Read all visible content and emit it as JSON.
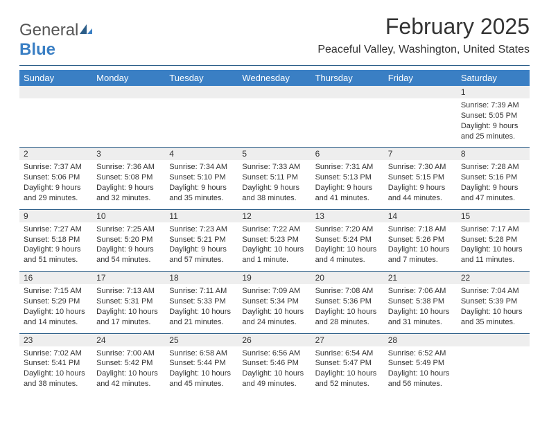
{
  "brand": {
    "word1": "General",
    "word2": "Blue"
  },
  "title": "February 2025",
  "location": "Peaceful Valley, Washington, United States",
  "colors": {
    "header_bg": "#3a7fc4",
    "header_text": "#ffffff",
    "divider": "#2b5d88",
    "band_bg": "#eeeeee",
    "text": "#333333",
    "page_bg": "#ffffff"
  },
  "day_headers": [
    "Sunday",
    "Monday",
    "Tuesday",
    "Wednesday",
    "Thursday",
    "Friday",
    "Saturday"
  ],
  "weeks": [
    [
      null,
      null,
      null,
      null,
      null,
      null,
      {
        "n": "1",
        "sr": "7:39 AM",
        "ss": "5:05 PM",
        "dl": "9 hours and 25 minutes."
      }
    ],
    [
      {
        "n": "2",
        "sr": "7:37 AM",
        "ss": "5:06 PM",
        "dl": "9 hours and 29 minutes."
      },
      {
        "n": "3",
        "sr": "7:36 AM",
        "ss": "5:08 PM",
        "dl": "9 hours and 32 minutes."
      },
      {
        "n": "4",
        "sr": "7:34 AM",
        "ss": "5:10 PM",
        "dl": "9 hours and 35 minutes."
      },
      {
        "n": "5",
        "sr": "7:33 AM",
        "ss": "5:11 PM",
        "dl": "9 hours and 38 minutes."
      },
      {
        "n": "6",
        "sr": "7:31 AM",
        "ss": "5:13 PM",
        "dl": "9 hours and 41 minutes."
      },
      {
        "n": "7",
        "sr": "7:30 AM",
        "ss": "5:15 PM",
        "dl": "9 hours and 44 minutes."
      },
      {
        "n": "8",
        "sr": "7:28 AM",
        "ss": "5:16 PM",
        "dl": "9 hours and 47 minutes."
      }
    ],
    [
      {
        "n": "9",
        "sr": "7:27 AM",
        "ss": "5:18 PM",
        "dl": "9 hours and 51 minutes."
      },
      {
        "n": "10",
        "sr": "7:25 AM",
        "ss": "5:20 PM",
        "dl": "9 hours and 54 minutes."
      },
      {
        "n": "11",
        "sr": "7:23 AM",
        "ss": "5:21 PM",
        "dl": "9 hours and 57 minutes."
      },
      {
        "n": "12",
        "sr": "7:22 AM",
        "ss": "5:23 PM",
        "dl": "10 hours and 1 minute."
      },
      {
        "n": "13",
        "sr": "7:20 AM",
        "ss": "5:24 PM",
        "dl": "10 hours and 4 minutes."
      },
      {
        "n": "14",
        "sr": "7:18 AM",
        "ss": "5:26 PM",
        "dl": "10 hours and 7 minutes."
      },
      {
        "n": "15",
        "sr": "7:17 AM",
        "ss": "5:28 PM",
        "dl": "10 hours and 11 minutes."
      }
    ],
    [
      {
        "n": "16",
        "sr": "7:15 AM",
        "ss": "5:29 PM",
        "dl": "10 hours and 14 minutes."
      },
      {
        "n": "17",
        "sr": "7:13 AM",
        "ss": "5:31 PM",
        "dl": "10 hours and 17 minutes."
      },
      {
        "n": "18",
        "sr": "7:11 AM",
        "ss": "5:33 PM",
        "dl": "10 hours and 21 minutes."
      },
      {
        "n": "19",
        "sr": "7:09 AM",
        "ss": "5:34 PM",
        "dl": "10 hours and 24 minutes."
      },
      {
        "n": "20",
        "sr": "7:08 AM",
        "ss": "5:36 PM",
        "dl": "10 hours and 28 minutes."
      },
      {
        "n": "21",
        "sr": "7:06 AM",
        "ss": "5:38 PM",
        "dl": "10 hours and 31 minutes."
      },
      {
        "n": "22",
        "sr": "7:04 AM",
        "ss": "5:39 PM",
        "dl": "10 hours and 35 minutes."
      }
    ],
    [
      {
        "n": "23",
        "sr": "7:02 AM",
        "ss": "5:41 PM",
        "dl": "10 hours and 38 minutes."
      },
      {
        "n": "24",
        "sr": "7:00 AM",
        "ss": "5:42 PM",
        "dl": "10 hours and 42 minutes."
      },
      {
        "n": "25",
        "sr": "6:58 AM",
        "ss": "5:44 PM",
        "dl": "10 hours and 45 minutes."
      },
      {
        "n": "26",
        "sr": "6:56 AM",
        "ss": "5:46 PM",
        "dl": "10 hours and 49 minutes."
      },
      {
        "n": "27",
        "sr": "6:54 AM",
        "ss": "5:47 PM",
        "dl": "10 hours and 52 minutes."
      },
      {
        "n": "28",
        "sr": "6:52 AM",
        "ss": "5:49 PM",
        "dl": "10 hours and 56 minutes."
      },
      null
    ]
  ],
  "labels": {
    "sunrise": "Sunrise:",
    "sunset": "Sunset:",
    "daylight": "Daylight:"
  }
}
